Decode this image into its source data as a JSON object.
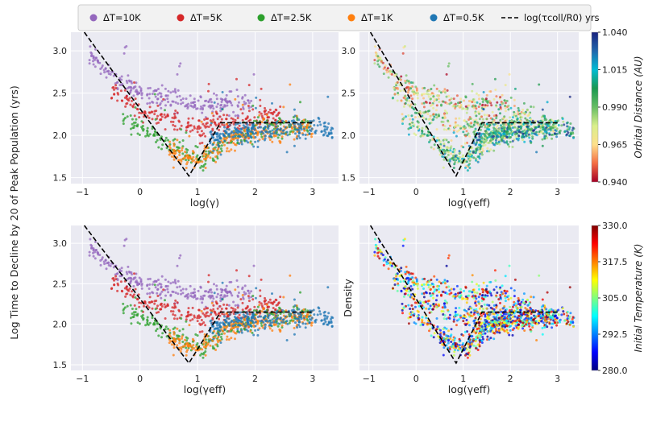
{
  "figure": {
    "ylabel_shared": "Log Time to Decline by 20 of Peak Population (yrs)"
  },
  "legend": {
    "placement": "top",
    "entries": [
      {
        "label": "ΔT=10K",
        "color": "#9467bd",
        "marker": "dot"
      },
      {
        "label": "ΔT=5K",
        "color": "#d62728",
        "marker": "dot"
      },
      {
        "label": "ΔT=2.5K",
        "color": "#2ca02c",
        "marker": "dot"
      },
      {
        "label": "ΔT=1K",
        "color": "#ff7f0e",
        "marker": "dot"
      },
      {
        "label": "ΔT=0.5K",
        "color": "#1f77b4",
        "marker": "dot"
      },
      {
        "label": "log(τcoll/R0) yrs",
        "color": "#000000",
        "marker": "dashed-line"
      }
    ]
  },
  "chart_data": [
    {
      "type": "scatter",
      "panel": "top-left",
      "xlabel": "log(γ)",
      "ylabel": "",
      "xlim": [
        -1.2,
        3.45
      ],
      "ylim": [
        1.43,
        3.22
      ],
      "xticks": [
        -1,
        0,
        1,
        2,
        3
      ],
      "yticks": [
        1.5,
        2.0,
        2.5,
        3.0
      ],
      "grid": true,
      "color_mode": "series",
      "theory_line": {
        "x": [
          -1.0,
          0.85,
          1.4,
          3.0
        ],
        "y": [
          3.25,
          1.52,
          2.15,
          2.15
        ],
        "style": "dashed"
      },
      "series": [
        {
          "name": "ΔT=10K",
          "color": "#9467bd",
          "trend": {
            "x": [
              -0.9,
              -0.5,
              0.0,
              0.5,
              1.0,
              1.5,
              2.0
            ],
            "y": [
              2.95,
              2.72,
              2.5,
              2.42,
              2.38,
              2.36,
              2.36
            ]
          }
        },
        {
          "name": "ΔT=5K",
          "color": "#d62728",
          "trend": {
            "x": [
              -0.5,
              0.0,
              0.5,
              1.0,
              1.5,
              2.0,
              2.5
            ],
            "y": [
              2.55,
              2.3,
              2.18,
              2.08,
              2.15,
              2.2,
              2.22
            ]
          }
        },
        {
          "name": "ΔT=2.5K",
          "color": "#2ca02c",
          "trend": {
            "x": [
              -0.3,
              0.2,
              0.7,
              1.1,
              1.5,
              2.0,
              2.5,
              3.0
            ],
            "y": [
              2.2,
              2.0,
              1.82,
              1.7,
              1.95,
              2.05,
              2.1,
              2.1
            ]
          }
        },
        {
          "name": "ΔT=1K",
          "color": "#ff7f0e",
          "trend": {
            "x": [
              0.5,
              0.9,
              1.2,
              1.6,
              2.0,
              2.5,
              3.0
            ],
            "y": [
              1.85,
              1.7,
              1.78,
              1.98,
              2.05,
              2.07,
              2.08
            ]
          }
        },
        {
          "name": "ΔT=0.5K",
          "color": "#1f77b4",
          "trend": {
            "x": [
              1.2,
              1.6,
              2.0,
              2.5,
              3.0,
              3.35
            ],
            "y": [
              1.95,
              2.02,
              2.05,
              2.07,
              2.08,
              2.05
            ]
          }
        }
      ]
    },
    {
      "type": "scatter",
      "panel": "top-right",
      "xlabel": "log(γeff)",
      "ylabel": "",
      "xlim": [
        -1.2,
        3.45
      ],
      "ylim": [
        1.43,
        3.22
      ],
      "xticks": [
        -1,
        0,
        1,
        2,
        3
      ],
      "yticks": [
        1.5,
        2.0,
        2.5,
        3.0
      ],
      "grid": true,
      "color_mode": "colorbar",
      "theory_line": {
        "x": [
          -1.0,
          0.85,
          1.4,
          3.0
        ],
        "y": [
          3.25,
          1.52,
          2.15,
          2.15
        ],
        "style": "dashed"
      },
      "colorbar": {
        "label": "Orbital Distance (AU)",
        "range": [
          0.94,
          1.04
        ],
        "ticks": [
          "0.940",
          "0.965",
          "0.990",
          "1.015",
          "1.040"
        ],
        "cmap": [
          "#a50026",
          "#f46d43",
          "#fee08b",
          "#d9ef8b",
          "#66bd63",
          "#1a9850",
          "#00bcd4",
          "#2166ac",
          "#1a237e"
        ]
      }
    },
    {
      "type": "scatter",
      "panel": "bottom-left",
      "xlabel": "log(γeff)",
      "ylabel": "",
      "xlim": [
        -1.2,
        3.45
      ],
      "ylim": [
        1.43,
        3.22
      ],
      "xticks": [
        -1,
        0,
        1,
        2,
        3
      ],
      "yticks": [
        1.5,
        2.0,
        2.5,
        3.0
      ],
      "grid": true,
      "color_mode": "series",
      "theory_line": {
        "x": [
          -1.0,
          0.85,
          1.4,
          3.0
        ],
        "y": [
          3.25,
          1.52,
          2.15,
          2.15
        ],
        "style": "dashed"
      }
    },
    {
      "type": "scatter",
      "panel": "bottom-right",
      "xlabel": "log(γeff)",
      "ylabel": "Density",
      "xlim": [
        -1.2,
        3.45
      ],
      "ylim": [
        1.43,
        3.22
      ],
      "xticks": [
        -1,
        0,
        1,
        2,
        3
      ],
      "yticks": [],
      "grid": true,
      "color_mode": "colorbar",
      "theory_line": {
        "x": [
          -1.0,
          0.85,
          1.4,
          3.0
        ],
        "y": [
          3.25,
          1.52,
          2.15,
          2.15
        ],
        "style": "dashed"
      },
      "colorbar": {
        "label": "Initial Temperature (K)",
        "range": [
          280,
          330
        ],
        "ticks": [
          "280.0",
          "292.5",
          "305.0",
          "317.5",
          "330.0"
        ],
        "cmap": [
          "#00007f",
          "#0000ff",
          "#007fff",
          "#00ffff",
          "#7fff7f",
          "#ffff00",
          "#ff7f00",
          "#ff0000",
          "#7f0000"
        ]
      }
    }
  ]
}
